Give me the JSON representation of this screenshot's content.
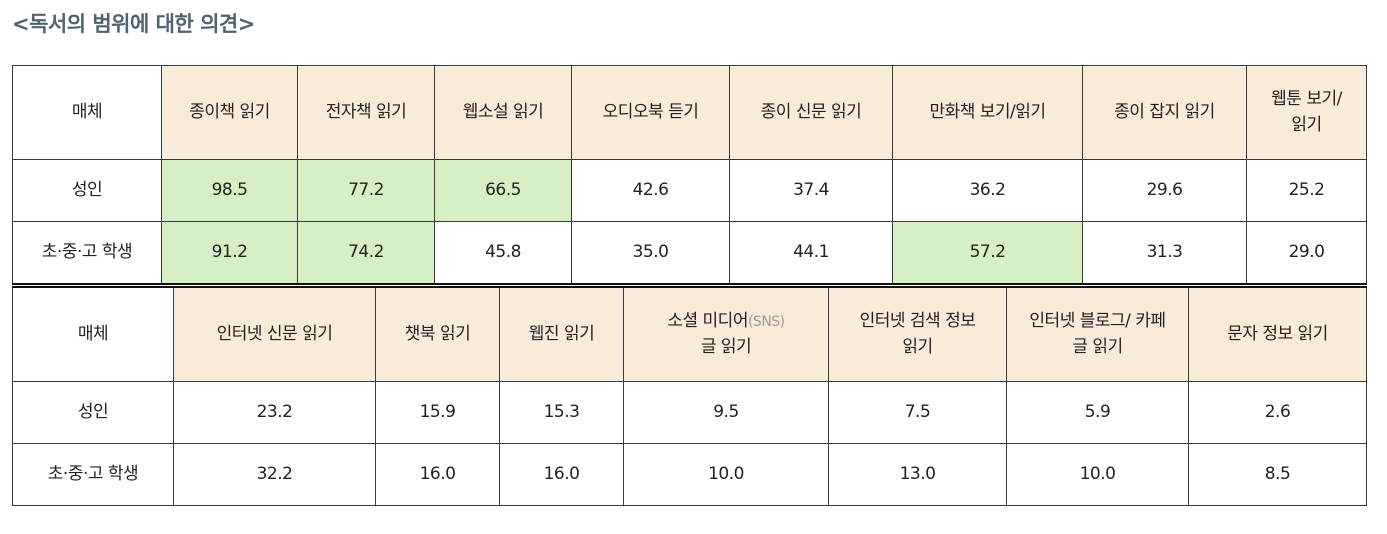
{
  "title": "<독서의 범위에 대한 의견>",
  "colors": {
    "header_bg": "#f8ebd9",
    "highlight_bg": "#d6efc5",
    "title": "#4f6470"
  },
  "table1": {
    "corner": "매체",
    "headers": [
      "종이책 읽기",
      "전자책 읽기",
      "웹소설 읽기",
      "오디오북 듣기",
      "종이 신문 읽기",
      "만화책 보기/읽기",
      "종이 잡지 읽기",
      "웹툰 보기/읽기"
    ],
    "rows": [
      {
        "label": "성인",
        "values": [
          "98.5",
          "77.2",
          "66.5",
          "42.6",
          "37.4",
          "36.2",
          "29.6",
          "25.2"
        ],
        "highlight": [
          true,
          true,
          true,
          false,
          false,
          false,
          false,
          false
        ]
      },
      {
        "label": "초·중·고 학생",
        "values": [
          "91.2",
          "74.2",
          "45.8",
          "35.0",
          "44.1",
          "57.2",
          "31.3",
          "29.0"
        ],
        "highlight": [
          true,
          true,
          false,
          false,
          false,
          true,
          false,
          false
        ]
      }
    ]
  },
  "table2": {
    "corner": "매체",
    "headers": [
      "인터넷 신문 읽기",
      "챗북 읽기",
      "웹진 읽기",
      "소셜 미디어",
      "인터넷 검색 정보 읽기",
      "인터넷 블로그/ 카페글 읽기",
      "문자 정보 읽기"
    ],
    "header4_suffix": "(SNS)",
    "header4_line2": "글 읽기",
    "rows": [
      {
        "label": "성인",
        "values": [
          "23.2",
          "15.9",
          "15.3",
          "9.5",
          "7.5",
          "5.9",
          "2.6"
        ]
      },
      {
        "label": "초·중·고 학생",
        "values": [
          "32.2",
          "16.0",
          "16.0",
          "10.0",
          "13.0",
          "10.0",
          "8.5"
        ]
      }
    ]
  }
}
